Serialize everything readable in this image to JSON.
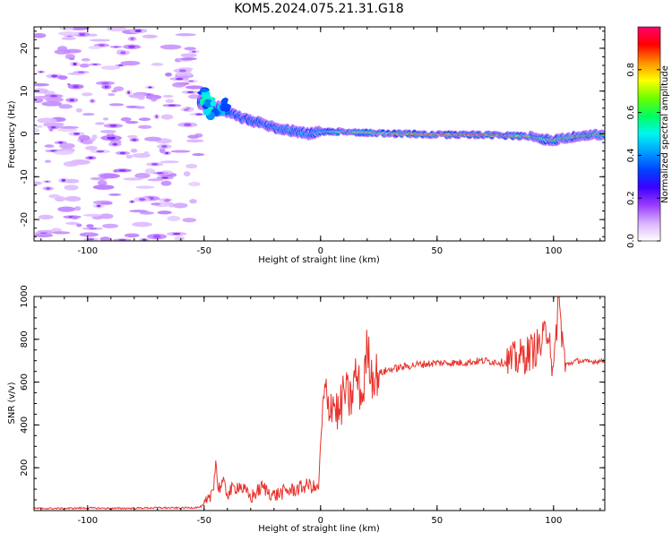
{
  "title": "KOM5.2024.075.21.31.G18",
  "colors": {
    "snr_line": "#e8332c",
    "cbar_stops": [
      "#ffffff",
      "#d9b3ff",
      "#9a3cff",
      "#3a00ff",
      "#0044ff",
      "#00a0ff",
      "#00f5f0",
      "#00ff60",
      "#6bff00",
      "#ffff00",
      "#ff9000",
      "#ff0000",
      "#ff0070"
    ]
  },
  "chart_data": [
    {
      "type": "heatmap",
      "xlabel": "Height of straight line (km)",
      "ylabel": "Frequency (Hz)",
      "xlim": [
        -123,
        122
      ],
      "ylim": [
        -25,
        25
      ],
      "xticks": [
        "-100",
        "-50",
        "0",
        "50",
        "100"
      ],
      "yticks": [
        "-20",
        "-10",
        "0",
        "10",
        "20"
      ],
      "colorbar": {
        "label": "Normalized spectral amplitude",
        "range": [
          0,
          1
        ],
        "ticks": [
          "0.0",
          "0.2",
          "0.4",
          "0.6",
          "0.8"
        ]
      },
      "ridge": {
        "x": [
          -52,
          -45,
          -40,
          -35,
          -30,
          -25,
          -20,
          -15,
          -10,
          -5,
          0,
          5,
          10,
          20,
          30,
          40,
          50,
          60,
          70,
          80,
          90,
          95,
          100,
          105,
          110,
          115,
          122
        ],
        "freq": [
          7.5,
          6,
          5.5,
          4,
          3,
          2.5,
          1.5,
          1,
          0.5,
          0,
          0.5,
          0.5,
          0.5,
          0.3,
          0,
          0,
          -0.2,
          -0.2,
          -0.2,
          -0.4,
          -0.6,
          -1.2,
          -1.5,
          -1,
          -0.6,
          -0.4,
          0
        ]
      }
    },
    {
      "type": "line",
      "xlabel": "Height of straight line (km)",
      "ylabel": "SNR (v/v)",
      "xlim": [
        -123,
        122
      ],
      "ylim": [
        0,
        1000
      ],
      "xticks": [
        "-100",
        "-50",
        "0",
        "50",
        "100"
      ],
      "yticks": [
        "200",
        "400",
        "600",
        "800",
        "1000"
      ],
      "series": [
        {
          "x": [
            -123,
            -110,
            -100,
            -90,
            -80,
            -70,
            -60,
            -52,
            -48,
            -46,
            -45,
            -44,
            -42,
            -40,
            -35,
            -30,
            -25,
            -20,
            -15,
            -10,
            -5,
            -1,
            0,
            1,
            2,
            3,
            5,
            8,
            10,
            13,
            15,
            18,
            20,
            22,
            25,
            30,
            40,
            50,
            60,
            70,
            80,
            85,
            90,
            95,
            98,
            100,
            102,
            105,
            110,
            115,
            122
          ],
          "y": [
            10,
            10,
            12,
            10,
            11,
            13,
            12,
            15,
            40,
            120,
            230,
            100,
            130,
            80,
            120,
            60,
            110,
            70,
            90,
            100,
            120,
            95,
            290,
            470,
            560,
            480,
            520,
            440,
            560,
            510,
            640,
            520,
            770,
            630,
            640,
            660,
            680,
            690,
            690,
            700,
            690,
            710,
            740,
            780,
            870,
            600,
            1000,
            680,
            700,
            695,
            700
          ]
        }
      ]
    }
  ]
}
